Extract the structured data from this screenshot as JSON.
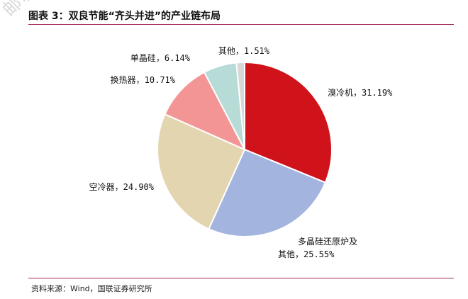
{
  "header": {
    "title": "图表 3：双良节能“齐头并进”的产业链布局",
    "watermark": "邮箱"
  },
  "footer": {
    "source": "资料来源：Wind，国联证券研究所"
  },
  "colors": {
    "rule": "#a0285a"
  },
  "chart_data": {
    "type": "pie",
    "title": "",
    "slices": [
      {
        "name": "溴冷机",
        "value": 31.19,
        "label": "溴冷机，31.19%",
        "color": "#d0121b"
      },
      {
        "name": "多晶硅还原炉及其他",
        "value": 25.55,
        "label_lines": [
          "多晶硅还原炉及",
          "其他，25.55%"
        ],
        "color": "#a3b5df"
      },
      {
        "name": "空冷器",
        "value": 24.9,
        "label": "空冷器，24.90%",
        "color": "#e3d5b0"
      },
      {
        "name": "换热器",
        "value": 10.71,
        "label": "换热器，10.71%",
        "color": "#f39595"
      },
      {
        "name": "单晶硅",
        "value": 6.14,
        "label": "单晶硅，6.14%",
        "color": "#b7dbd7"
      },
      {
        "name": "其他",
        "value": 1.51,
        "label": "其他，1.51%",
        "color": "#d7d7d7"
      }
    ]
  }
}
